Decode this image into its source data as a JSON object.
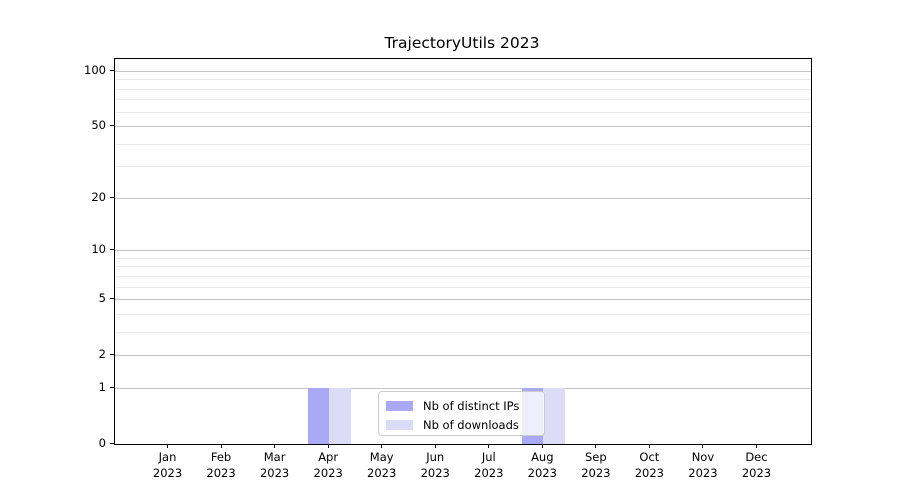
{
  "chart_data": {
    "type": "bar",
    "title": "TrajectoryUtils 2023",
    "categories": [
      "Jan 2023",
      "Feb 2023",
      "Mar 2023",
      "Apr 2023",
      "May 2023",
      "Jun 2023",
      "Jul 2023",
      "Aug 2023",
      "Sep 2023",
      "Oct 2023",
      "Nov 2023",
      "Dec 2023"
    ],
    "series": [
      {
        "name": "Nb of distinct IPs",
        "color": "#a9a9f5",
        "values": [
          0,
          0,
          0,
          1,
          0,
          0,
          0,
          1,
          0,
          0,
          0,
          0
        ]
      },
      {
        "name": "Nb of downloads",
        "color": "#dcdcf7",
        "values": [
          0,
          0,
          0,
          1,
          0,
          0,
          0,
          1,
          0,
          0,
          0,
          0
        ]
      }
    ],
    "xlabel": "",
    "ylabel": "",
    "y_scale": "log1p",
    "y_ticks": [
      0,
      1,
      2,
      5,
      10,
      20,
      50,
      100
    ],
    "y_minor_ticks": [
      3,
      4,
      6,
      7,
      8,
      9,
      30,
      40,
      60,
      70,
      80,
      90
    ],
    "ylim": [
      0,
      116
    ],
    "grid": "horizontal",
    "legend_position": "lower center inside"
  },
  "colors": {
    "major_grid": "#c4c4c4",
    "minor_grid": "#ebebeb",
    "axis": "#000000",
    "legend_border": "#cccccc",
    "background": "#ffffff"
  }
}
